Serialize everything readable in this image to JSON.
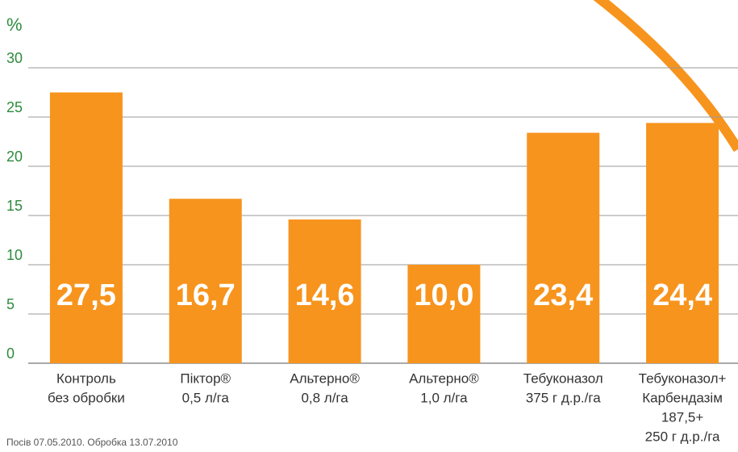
{
  "chart_data": {
    "type": "bar",
    "y_label": "%",
    "categories": [
      [
        "Контроль",
        "без обробки"
      ],
      [
        "Піктор®",
        "0,5 л/га"
      ],
      [
        "Альтерно®",
        "0,8 л/га"
      ],
      [
        "Альтерно®",
        "1,0 л/га"
      ],
      [
        "Тебуконазол",
        "375 г д.р./га"
      ],
      [
        "Тебуконазол+",
        "Карбендазім",
        "187,5+",
        "250 г д.р./га"
      ]
    ],
    "values": [
      27.5,
      16.7,
      14.6,
      10.0,
      23.4,
      24.4
    ],
    "value_labels": [
      "27,5",
      "16,7",
      "14,6",
      "10,0",
      "23,4",
      "24,4"
    ],
    "color": "#f7941d",
    "ylim": [
      0,
      30
    ],
    "yticks": [
      0,
      5,
      10,
      15,
      20,
      25,
      30
    ],
    "grid": true,
    "footnote": "Посів 07.05.2010. Обробка 13.07.2010"
  }
}
